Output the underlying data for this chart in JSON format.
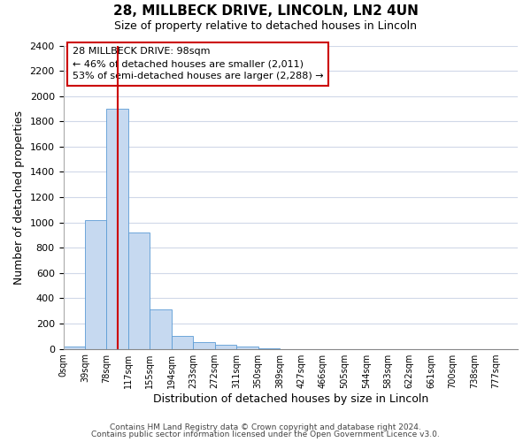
{
  "title": "28, MILLBECK DRIVE, LINCOLN, LN2 4UN",
  "subtitle": "Size of property relative to detached houses in Lincoln",
  "xlabel": "Distribution of detached houses by size in Lincoln",
  "ylabel": "Number of detached properties",
  "bar_labels": [
    "0sqm",
    "39sqm",
    "78sqm",
    "117sqm",
    "155sqm",
    "194sqm",
    "233sqm",
    "272sqm",
    "311sqm",
    "350sqm",
    "389sqm",
    "427sqm",
    "466sqm",
    "505sqm",
    "544sqm",
    "583sqm",
    "622sqm",
    "661sqm",
    "700sqm",
    "738sqm",
    "777sqm"
  ],
  "bar_values": [
    20,
    1020,
    1900,
    920,
    315,
    105,
    55,
    30,
    15,
    5,
    0,
    0,
    0,
    0,
    0,
    0,
    0,
    0,
    0,
    0,
    0
  ],
  "bar_color": "#c6d9f0",
  "bar_edge_color": "#5b9bd5",
  "ylim": [
    0,
    2400
  ],
  "yticks": [
    0,
    200,
    400,
    600,
    800,
    1000,
    1200,
    1400,
    1600,
    1800,
    2000,
    2200,
    2400
  ],
  "vline_x": 2.51,
  "vline_color": "#cc0000",
  "annotation_title": "28 MILLBECK DRIVE: 98sqm",
  "annotation_line1": "← 46% of detached houses are smaller (2,011)",
  "annotation_line2": "53% of semi-detached houses are larger (2,288) →",
  "footer1": "Contains HM Land Registry data © Crown copyright and database right 2024.",
  "footer2": "Contains public sector information licensed under the Open Government Licence v3.0.",
  "background_color": "#ffffff",
  "grid_color": "#d0d8e8"
}
